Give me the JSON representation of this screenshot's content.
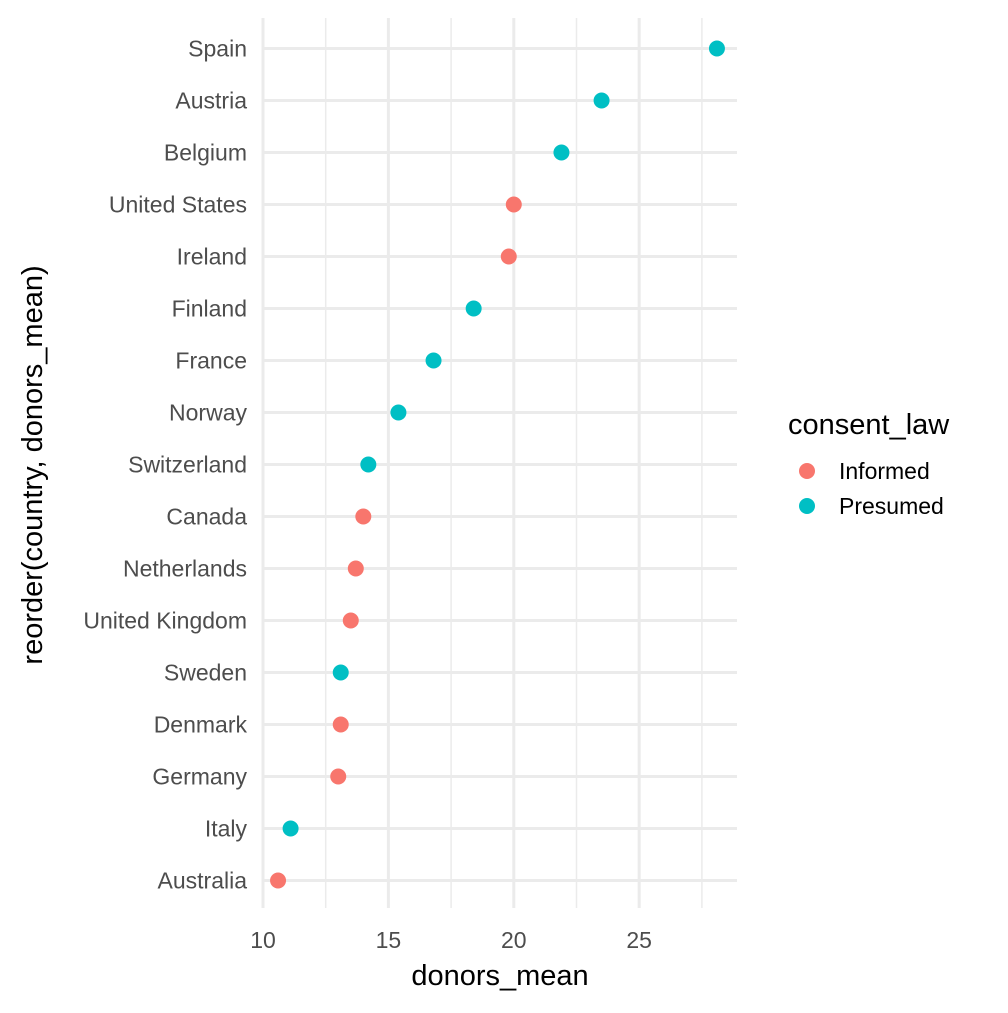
{
  "chart_data": {
    "type": "scatter",
    "xlabel": "donors_mean",
    "ylabel": "reorder(country, donors_mean)",
    "xlim": [
      10,
      28.9
    ],
    "x_ticks": [
      10,
      15,
      20,
      25
    ],
    "x_tick_labels": [
      "10",
      "15",
      "20",
      "25"
    ],
    "grid": true,
    "legend_position": "right",
    "legend": {
      "title": "consent_law",
      "entries": [
        {
          "label": "Informed",
          "color": "#F8766D"
        },
        {
          "label": "Presumed",
          "color": "#00BFC4"
        }
      ]
    },
    "categories": [
      "Australia",
      "Italy",
      "Germany",
      "Denmark",
      "Sweden",
      "United Kingdom",
      "Netherlands",
      "Canada",
      "Switzerland",
      "Norway",
      "France",
      "Finland",
      "Ireland",
      "United States",
      "Belgium",
      "Austria",
      "Spain"
    ],
    "points": [
      {
        "country": "Australia",
        "x": 10.6,
        "group": "Informed"
      },
      {
        "country": "Italy",
        "x": 11.1,
        "group": "Presumed"
      },
      {
        "country": "Germany",
        "x": 13.0,
        "group": "Informed"
      },
      {
        "country": "Denmark",
        "x": 13.1,
        "group": "Informed"
      },
      {
        "country": "Sweden",
        "x": 13.1,
        "group": "Presumed"
      },
      {
        "country": "United Kingdom",
        "x": 13.5,
        "group": "Informed"
      },
      {
        "country": "Netherlands",
        "x": 13.7,
        "group": "Informed"
      },
      {
        "country": "Canada",
        "x": 14.0,
        "group": "Informed"
      },
      {
        "country": "Switzerland",
        "x": 14.2,
        "group": "Presumed"
      },
      {
        "country": "Norway",
        "x": 15.4,
        "group": "Presumed"
      },
      {
        "country": "France",
        "x": 16.8,
        "group": "Presumed"
      },
      {
        "country": "Finland",
        "x": 18.4,
        "group": "Presumed"
      },
      {
        "country": "Ireland",
        "x": 19.8,
        "group": "Informed"
      },
      {
        "country": "United States",
        "x": 20.0,
        "group": "Informed"
      },
      {
        "country": "Belgium",
        "x": 21.9,
        "group": "Presumed"
      },
      {
        "country": "Austria",
        "x": 23.5,
        "group": "Presumed"
      },
      {
        "country": "Spain",
        "x": 28.1,
        "group": "Presumed"
      }
    ]
  }
}
